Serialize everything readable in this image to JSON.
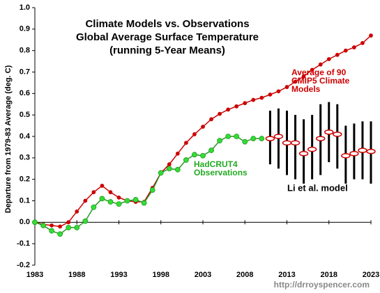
{
  "chart_data": {
    "type": "line",
    "title": [
      "Climate Models vs. Observations",
      "Global Average Surface Temperature",
      "(running 5-Year Means)"
    ],
    "y_label": "Departure from 1979-83 Average (deg. C)",
    "annotations": [
      {
        "lines": [
          "Average of 90",
          "CMIP5 Climate",
          "Models"
        ],
        "color": "#cc0000"
      },
      {
        "lines": [
          "HadCRUT4",
          "Observations"
        ],
        "color": "#22aa22"
      },
      {
        "lines": [
          "Li et al. model"
        ],
        "color": "#000000"
      }
    ],
    "source": "http://drroyspencer.com",
    "x": [
      1983,
      1984,
      1985,
      1986,
      1987,
      1988,
      1989,
      1990,
      1991,
      1992,
      1993,
      1994,
      1995,
      1996,
      1997,
      1998,
      1999,
      2000,
      2001,
      2002,
      2003,
      2004,
      2005,
      2006,
      2007,
      2008,
      2009,
      2010,
      2011,
      2012,
      2013,
      2014,
      2015,
      2016,
      2017,
      2018,
      2019,
      2020,
      2021,
      2022,
      2023
    ],
    "xlim": [
      1983,
      2023
    ],
    "xticks": [
      1983,
      1988,
      1993,
      1998,
      2003,
      2008,
      2013,
      2018,
      2023
    ],
    "ylim": [
      -0.2,
      1.0
    ],
    "yticks": [
      -0.2,
      -0.1,
      {
        "value": 0,
        "label": "0.0"
      },
      0.1,
      0.2,
      0.3,
      0.4,
      0.5,
      0.6,
      0.7,
      0.8,
      0.9,
      {
        "value": 1,
        "label": "1.0"
      }
    ],
    "series": [
      {
        "name": "CMIP5 average",
        "color": "#cc0000",
        "values": [
          0.0,
          -0.01,
          -0.015,
          -0.02,
          0.0,
          0.05,
          0.1,
          0.14,
          0.17,
          0.14,
          0.115,
          0.1,
          0.095,
          0.095,
          0.16,
          0.23,
          0.27,
          0.32,
          0.37,
          0.41,
          0.445,
          0.48,
          0.505,
          0.525,
          0.54,
          0.555,
          0.57,
          0.58,
          0.595,
          0.61,
          0.63,
          0.655,
          0.68,
          0.71,
          0.735,
          0.76,
          0.78,
          0.8,
          0.815,
          0.835,
          0.87
        ]
      },
      {
        "name": "HadCRUT4",
        "color": "#33dd33",
        "values": [
          0.0,
          -0.015,
          -0.04,
          -0.055,
          -0.025,
          -0.025,
          0.005,
          0.07,
          0.11,
          0.095,
          0.085,
          0.1,
          0.105,
          0.09,
          0.15,
          0.23,
          0.25,
          0.245,
          0.29,
          0.315,
          0.31,
          0.335,
          0.38,
          0.4,
          0.4,
          0.375,
          0.39,
          0.39,
          null,
          null,
          null,
          null,
          null,
          null,
          null,
          null,
          null,
          null,
          null,
          null,
          null
        ]
      },
      {
        "name": "Li et al. model",
        "color": "#cc0000",
        "values": [
          null,
          null,
          null,
          null,
          null,
          null,
          null,
          null,
          null,
          null,
          null,
          null,
          null,
          null,
          null,
          null,
          null,
          null,
          null,
          null,
          null,
          null,
          null,
          null,
          null,
          null,
          null,
          null,
          0.39,
          0.4,
          0.37,
          0.37,
          0.32,
          0.34,
          0.39,
          0.42,
          0.41,
          0.31,
          0.32,
          0.335,
          0.33
        ],
        "low": [
          null,
          null,
          null,
          null,
          null,
          null,
          null,
          null,
          null,
          null,
          null,
          null,
          null,
          null,
          null,
          null,
          null,
          null,
          null,
          null,
          null,
          null,
          null,
          null,
          null,
          null,
          null,
          null,
          0.27,
          0.25,
          0.22,
          0.2,
          0.18,
          0.2,
          0.22,
          0.28,
          0.25,
          0.18,
          0.2,
          0.2,
          0.18
        ],
        "high": [
          null,
          null,
          null,
          null,
          null,
          null,
          null,
          null,
          null,
          null,
          null,
          null,
          null,
          null,
          null,
          null,
          null,
          null,
          null,
          null,
          null,
          null,
          null,
          null,
          null,
          null,
          null,
          null,
          0.52,
          0.53,
          0.52,
          0.5,
          0.48,
          0.5,
          0.55,
          0.56,
          0.55,
          0.45,
          0.46,
          0.47,
          0.47
        ]
      }
    ]
  }
}
